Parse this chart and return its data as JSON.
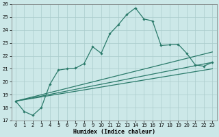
{
  "xlabel": "Humidex (Indice chaleur)",
  "bg_color": "#cce8e8",
  "grid_color": "#aacccc",
  "line_color": "#2a7a6a",
  "xlim": [
    -0.5,
    23.5
  ],
  "ylim": [
    17,
    26
  ],
  "xticks": [
    0,
    1,
    2,
    3,
    4,
    5,
    6,
    7,
    8,
    9,
    10,
    11,
    12,
    13,
    14,
    15,
    16,
    17,
    18,
    19,
    20,
    21,
    22,
    23
  ],
  "yticks": [
    17,
    18,
    19,
    20,
    21,
    22,
    23,
    24,
    25,
    26
  ],
  "line_main": {
    "x": [
      0,
      1,
      2,
      3,
      4,
      5,
      6,
      7,
      8,
      9,
      10,
      11,
      12,
      13,
      14,
      15,
      16,
      17,
      18,
      19,
      20,
      21,
      22,
      23
    ],
    "y": [
      18.5,
      17.7,
      17.4,
      18.0,
      19.8,
      20.9,
      21.0,
      21.05,
      21.4,
      22.7,
      22.2,
      23.7,
      24.4,
      25.2,
      25.7,
      24.85,
      24.7,
      22.8,
      22.85,
      22.9,
      22.2,
      21.3,
      21.2,
      21.5
    ]
  },
  "line_upper": {
    "x": [
      0,
      23
    ],
    "y": [
      18.5,
      22.3
    ]
  },
  "line_mid": {
    "x": [
      0,
      23
    ],
    "y": [
      18.5,
      21.5
    ]
  },
  "line_lower": {
    "x": [
      0,
      23
    ],
    "y": [
      18.5,
      21.0
    ]
  }
}
